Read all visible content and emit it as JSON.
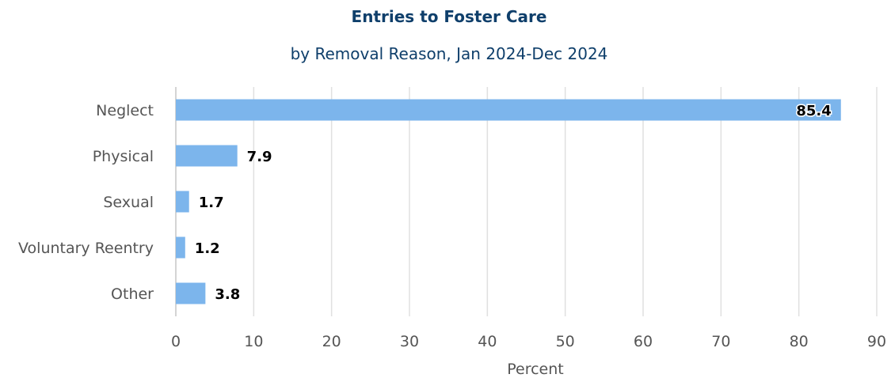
{
  "chart_data": {
    "type": "bar",
    "orientation": "horizontal",
    "title": "Entries to Foster Care",
    "subtitle": "by Removal Reason, Jan 2024-Dec 2024",
    "xlabel": "Percent",
    "ylabel": "",
    "categories": [
      "Neglect",
      "Physical",
      "Sexual",
      "Voluntary Reentry",
      "Other"
    ],
    "values": [
      85.4,
      7.9,
      1.7,
      1.2,
      3.8
    ],
    "xlim": [
      0,
      90
    ],
    "xticks": [
      "0",
      "10",
      "20",
      "30",
      "40",
      "50",
      "60",
      "70",
      "80",
      "90"
    ],
    "grid": true,
    "legend": "none",
    "bar_color": "#7cb5ec",
    "title_color": "#0f3f6b"
  }
}
